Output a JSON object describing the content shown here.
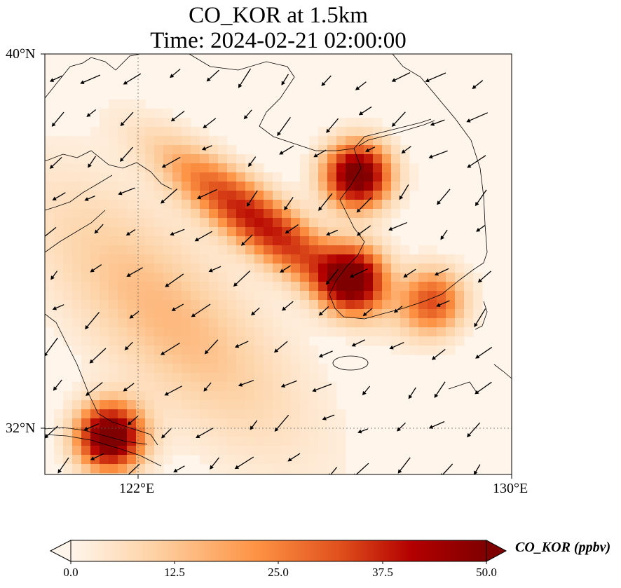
{
  "title": {
    "line1": "CO_KOR at 1.5km",
    "line2": "Time: 2024-02-21 02:00:00"
  },
  "map": {
    "lat_labels": [
      "40°N",
      "32°N"
    ],
    "lon_labels": [
      "122°E",
      "130°E"
    ],
    "lat_range": [
      31,
      40
    ],
    "lon_range": [
      120,
      130
    ],
    "gridlines": {
      "lat": 32,
      "lon": 122,
      "style": "dotted"
    },
    "plumes": [
      {
        "name": "korea-west-coast",
        "lon": 126.6,
        "lat": 37.5,
        "peak": 55
      },
      {
        "name": "yellow-sea-band",
        "lon": 124.5,
        "lat": 36.5,
        "peak": 38
      },
      {
        "name": "southwest-korea",
        "lon": 126.5,
        "lat": 35.3,
        "peak": 48
      },
      {
        "name": "southern-coast",
        "lon": 128.2,
        "lat": 34.8,
        "peak": 30
      },
      {
        "name": "shanghai",
        "lon": 121.3,
        "lat": 31.9,
        "peak": 58
      }
    ],
    "wind_field": "arrows, generally northeasterly-to-easterly over the Yellow Sea"
  },
  "colorbar": {
    "variable": "CO_KOR (ppbv)",
    "min": 0.0,
    "max": 50.0,
    "ticks": [
      "0.0",
      "12.5",
      "25.0",
      "37.5",
      "50.0"
    ],
    "colormap": [
      "#fff5eb",
      "#fdd2a5",
      "#fd9243",
      "#df4f1c",
      "#b30000",
      "#7f0000"
    ],
    "extend": "both"
  }
}
